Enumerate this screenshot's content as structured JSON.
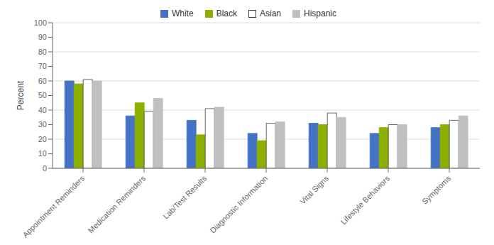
{
  "chart_data": {
    "type": "bar",
    "categories": [
      "Appointment Reminders",
      "Medication Reminders",
      "Lab/Test Results",
      "Diagnostic Information",
      "Vital Signs",
      "Lifestyle Behaviors",
      "Symptoms"
    ],
    "series": [
      {
        "name": "White",
        "color": "#4472C4",
        "values": [
          60,
          36,
          33,
          24,
          31,
          24,
          28
        ]
      },
      {
        "name": "Black",
        "color": "#8DB000",
        "values": [
          58,
          45,
          23,
          19,
          30,
          28,
          30
        ]
      },
      {
        "name": "Asian",
        "color": "#FFFFFF",
        "values": [
          61,
          39,
          41,
          31,
          38,
          30,
          33
        ]
      },
      {
        "name": "Hispanic",
        "color": "#C0C0C0",
        "values": [
          60,
          48,
          42,
          32,
          35,
          30,
          36
        ]
      }
    ],
    "ylabel": "Percent",
    "ylim": [
      0,
      100
    ],
    "yticks": [
      0,
      10,
      20,
      30,
      40,
      50,
      60,
      70,
      80,
      90,
      100
    ],
    "grid": true,
    "legend": "top"
  }
}
